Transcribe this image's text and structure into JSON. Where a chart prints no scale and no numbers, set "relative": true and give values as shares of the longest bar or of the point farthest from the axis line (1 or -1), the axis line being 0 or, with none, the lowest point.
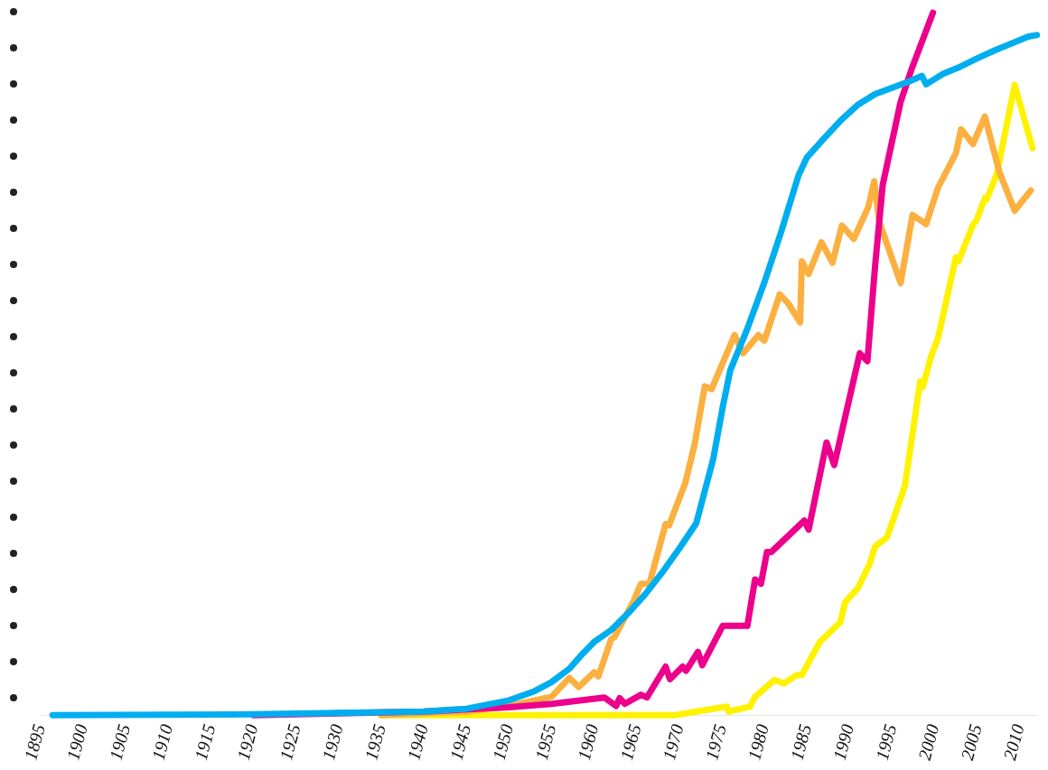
{
  "chart_data": {
    "type": "line",
    "relative": true,
    "xlim": [
      1895,
      2012
    ],
    "xticks": [
      1895,
      1900,
      1905,
      1910,
      1915,
      1920,
      1925,
      1930,
      1935,
      1940,
      1945,
      1950,
      1955,
      1960,
      1965,
      1970,
      1975,
      1980,
      1985,
      1990,
      1995,
      2000,
      2005,
      2010
    ],
    "grid": false,
    "legend": false,
    "marker": "none",
    "line_style": "solid",
    "series": [
      {
        "color": "#fff200",
        "x": [
          1935,
          1969.6,
          1972,
          1975.6,
          1975.8,
          1978.3,
          1978.9,
          1981.2,
          1982.3,
          1983.8,
          1984.4,
          1986.5,
          1988.9,
          1989.5,
          1991,
          1992.4,
          1993,
          1994.4,
          1996.5,
          1998.3,
          1998.6,
          1999.6,
          2000.4,
          2002.5,
          2002.8,
          2004.5,
          2004.9,
          2005.9,
          2006.1,
          2007.3,
          2009.4,
          2011.5
        ],
        "values": [
          0,
          0,
          0.005,
          0.012,
          0.005,
          0.012,
          0.026,
          0.05,
          0.045,
          0.057,
          0.057,
          0.104,
          0.132,
          0.161,
          0.181,
          0.216,
          0.24,
          0.253,
          0.326,
          0.475,
          0.467,
          0.511,
          0.537,
          0.652,
          0.646,
          0.698,
          0.704,
          0.736,
          0.734,
          0.77,
          0.897,
          0.807
        ]
      },
      {
        "color": "#fbb040",
        "x": [
          1935,
          1945,
          1950,
          1955,
          1957.1,
          1958.2,
          1960,
          1960.5,
          1962,
          1962.4,
          1964.7,
          1965.5,
          1966.5,
          1968.4,
          1968.8,
          1970.7,
          1971.8,
          1973,
          1973.8,
          1976.5,
          1977.5,
          1979.3,
          1980,
          1981.8,
          1982.8,
          1984.2,
          1984.4,
          1985.2,
          1986.7,
          1988,
          1989.1,
          1990.5,
          1992.2,
          1992.9,
          1993.5,
          1996,
          1997.4,
          1999,
          2000.4,
          2002.5,
          2003.1,
          2004.5,
          2005.9,
          2007.6,
          2009.4,
          2011.3
        ],
        "values": [
          0,
          0.005,
          0.013,
          0.026,
          0.053,
          0.04,
          0.061,
          0.055,
          0.108,
          0.111,
          0.164,
          0.187,
          0.187,
          0.272,
          0.27,
          0.33,
          0.385,
          0.468,
          0.464,
          0.541,
          0.515,
          0.541,
          0.533,
          0.599,
          0.586,
          0.559,
          0.646,
          0.628,
          0.673,
          0.644,
          0.697,
          0.678,
          0.723,
          0.76,
          0.702,
          0.615,
          0.712,
          0.699,
          0.751,
          0.8,
          0.834,
          0.813,
          0.852,
          0.773,
          0.718,
          0.747
        ]
      },
      {
        "color": "#ec008c",
        "x": [
          1920,
          1940,
          1950,
          1955,
          1961.2,
          1962.6,
          1963,
          1963.6,
          1965.5,
          1966.2,
          1968.4,
          1968.9,
          1970.4,
          1970.8,
          1972.2,
          1972.7,
          1975.1,
          1978,
          1978.9,
          1979.6,
          1980.3,
          1980.8,
          1984.7,
          1985.2,
          1987.3,
          1988.2,
          1991.2,
          1992.1,
          1993,
          1993.9,
          1996,
          1997.3,
          1999.8
        ],
        "values": [
          0,
          0.005,
          0.011,
          0.016,
          0.025,
          0.013,
          0.024,
          0.016,
          0.029,
          0.025,
          0.069,
          0.051,
          0.069,
          0.063,
          0.09,
          0.071,
          0.127,
          0.127,
          0.193,
          0.187,
          0.232,
          0.232,
          0.277,
          0.264,
          0.388,
          0.356,
          0.515,
          0.504,
          0.639,
          0.755,
          0.873,
          0.92,
          1.0
        ]
      },
      {
        "color": "#00aeef",
        "x": [
          1896.4,
          1920,
          1940,
          1945,
          1950,
          1953,
          1955,
          1957.1,
          1958.7,
          1960,
          1962,
          1964,
          1966,
          1968,
          1970,
          1972,
          1973,
          1974,
          1975.1,
          1976,
          1978,
          1980,
          1982,
          1984,
          1985,
          1987,
          1989,
          1991,
          1993,
          1995,
          1997,
          1998.5,
          1999,
          2001,
          2003,
          2005,
          2007,
          2009,
          2011,
          2012
        ],
        "values": [
          0,
          0.001,
          0.005,
          0.009,
          0.021,
          0.034,
          0.047,
          0.066,
          0.088,
          0.104,
          0.121,
          0.145,
          0.172,
          0.203,
          0.237,
          0.273,
          0.319,
          0.365,
          0.438,
          0.491,
          0.55,
          0.616,
          0.689,
          0.768,
          0.794,
          0.821,
          0.847,
          0.869,
          0.884,
          0.893,
          0.902,
          0.91,
          0.898,
          0.913,
          0.923,
          0.935,
          0.946,
          0.956,
          0.966,
          0.968
        ]
      }
    ]
  }
}
